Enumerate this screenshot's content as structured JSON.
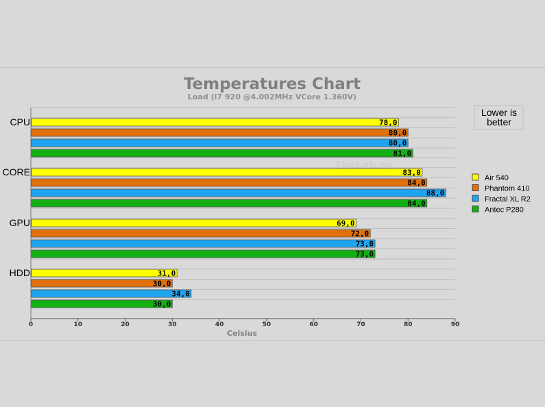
{
  "chart_data": {
    "type": "bar",
    "orientation": "horizontal",
    "title": "Temperatures Chart",
    "subtitle": "Load (i7 920 @4.002MHz VCore 1.360V)",
    "xlabel": "Celsius",
    "ylabel": "",
    "xlim": [
      0,
      90
    ],
    "xticks": [
      0,
      10,
      20,
      30,
      40,
      50,
      60,
      70,
      80,
      90
    ],
    "grid": true,
    "legend_position": "right",
    "categories": [
      "CPU",
      "CORE",
      "GPU",
      "HDD"
    ],
    "series": [
      {
        "name": "Air 540",
        "color": "#ffff00",
        "values": [
          78.0,
          83.0,
          69.0,
          31.0
        ],
        "labels": [
          "78,0",
          "83,0",
          "69,0",
          "31,0"
        ]
      },
      {
        "name": "Phantom 410",
        "color": "#e0700a",
        "values": [
          80.0,
          84.0,
          72.0,
          30.0
        ],
        "labels": [
          "80,0",
          "84,0",
          "72,0",
          "30,0"
        ]
      },
      {
        "name": "Fractal XL R2",
        "color": "#1fa4ef",
        "values": [
          80.0,
          88.0,
          73.0,
          34.0
        ],
        "labels": [
          "80,0",
          "88,0",
          "73,0",
          "34,0"
        ]
      },
      {
        "name": "Antec P280",
        "color": "#12b012",
        "values": [
          81.0,
          84.0,
          73.0,
          30.0
        ],
        "labels": [
          "81,0",
          "84,0",
          "73,0",
          "30,0"
        ]
      }
    ],
    "annotations": {
      "note": [
        "Lower is",
        "better"
      ],
      "watermark": "TheLab.gr"
    }
  }
}
